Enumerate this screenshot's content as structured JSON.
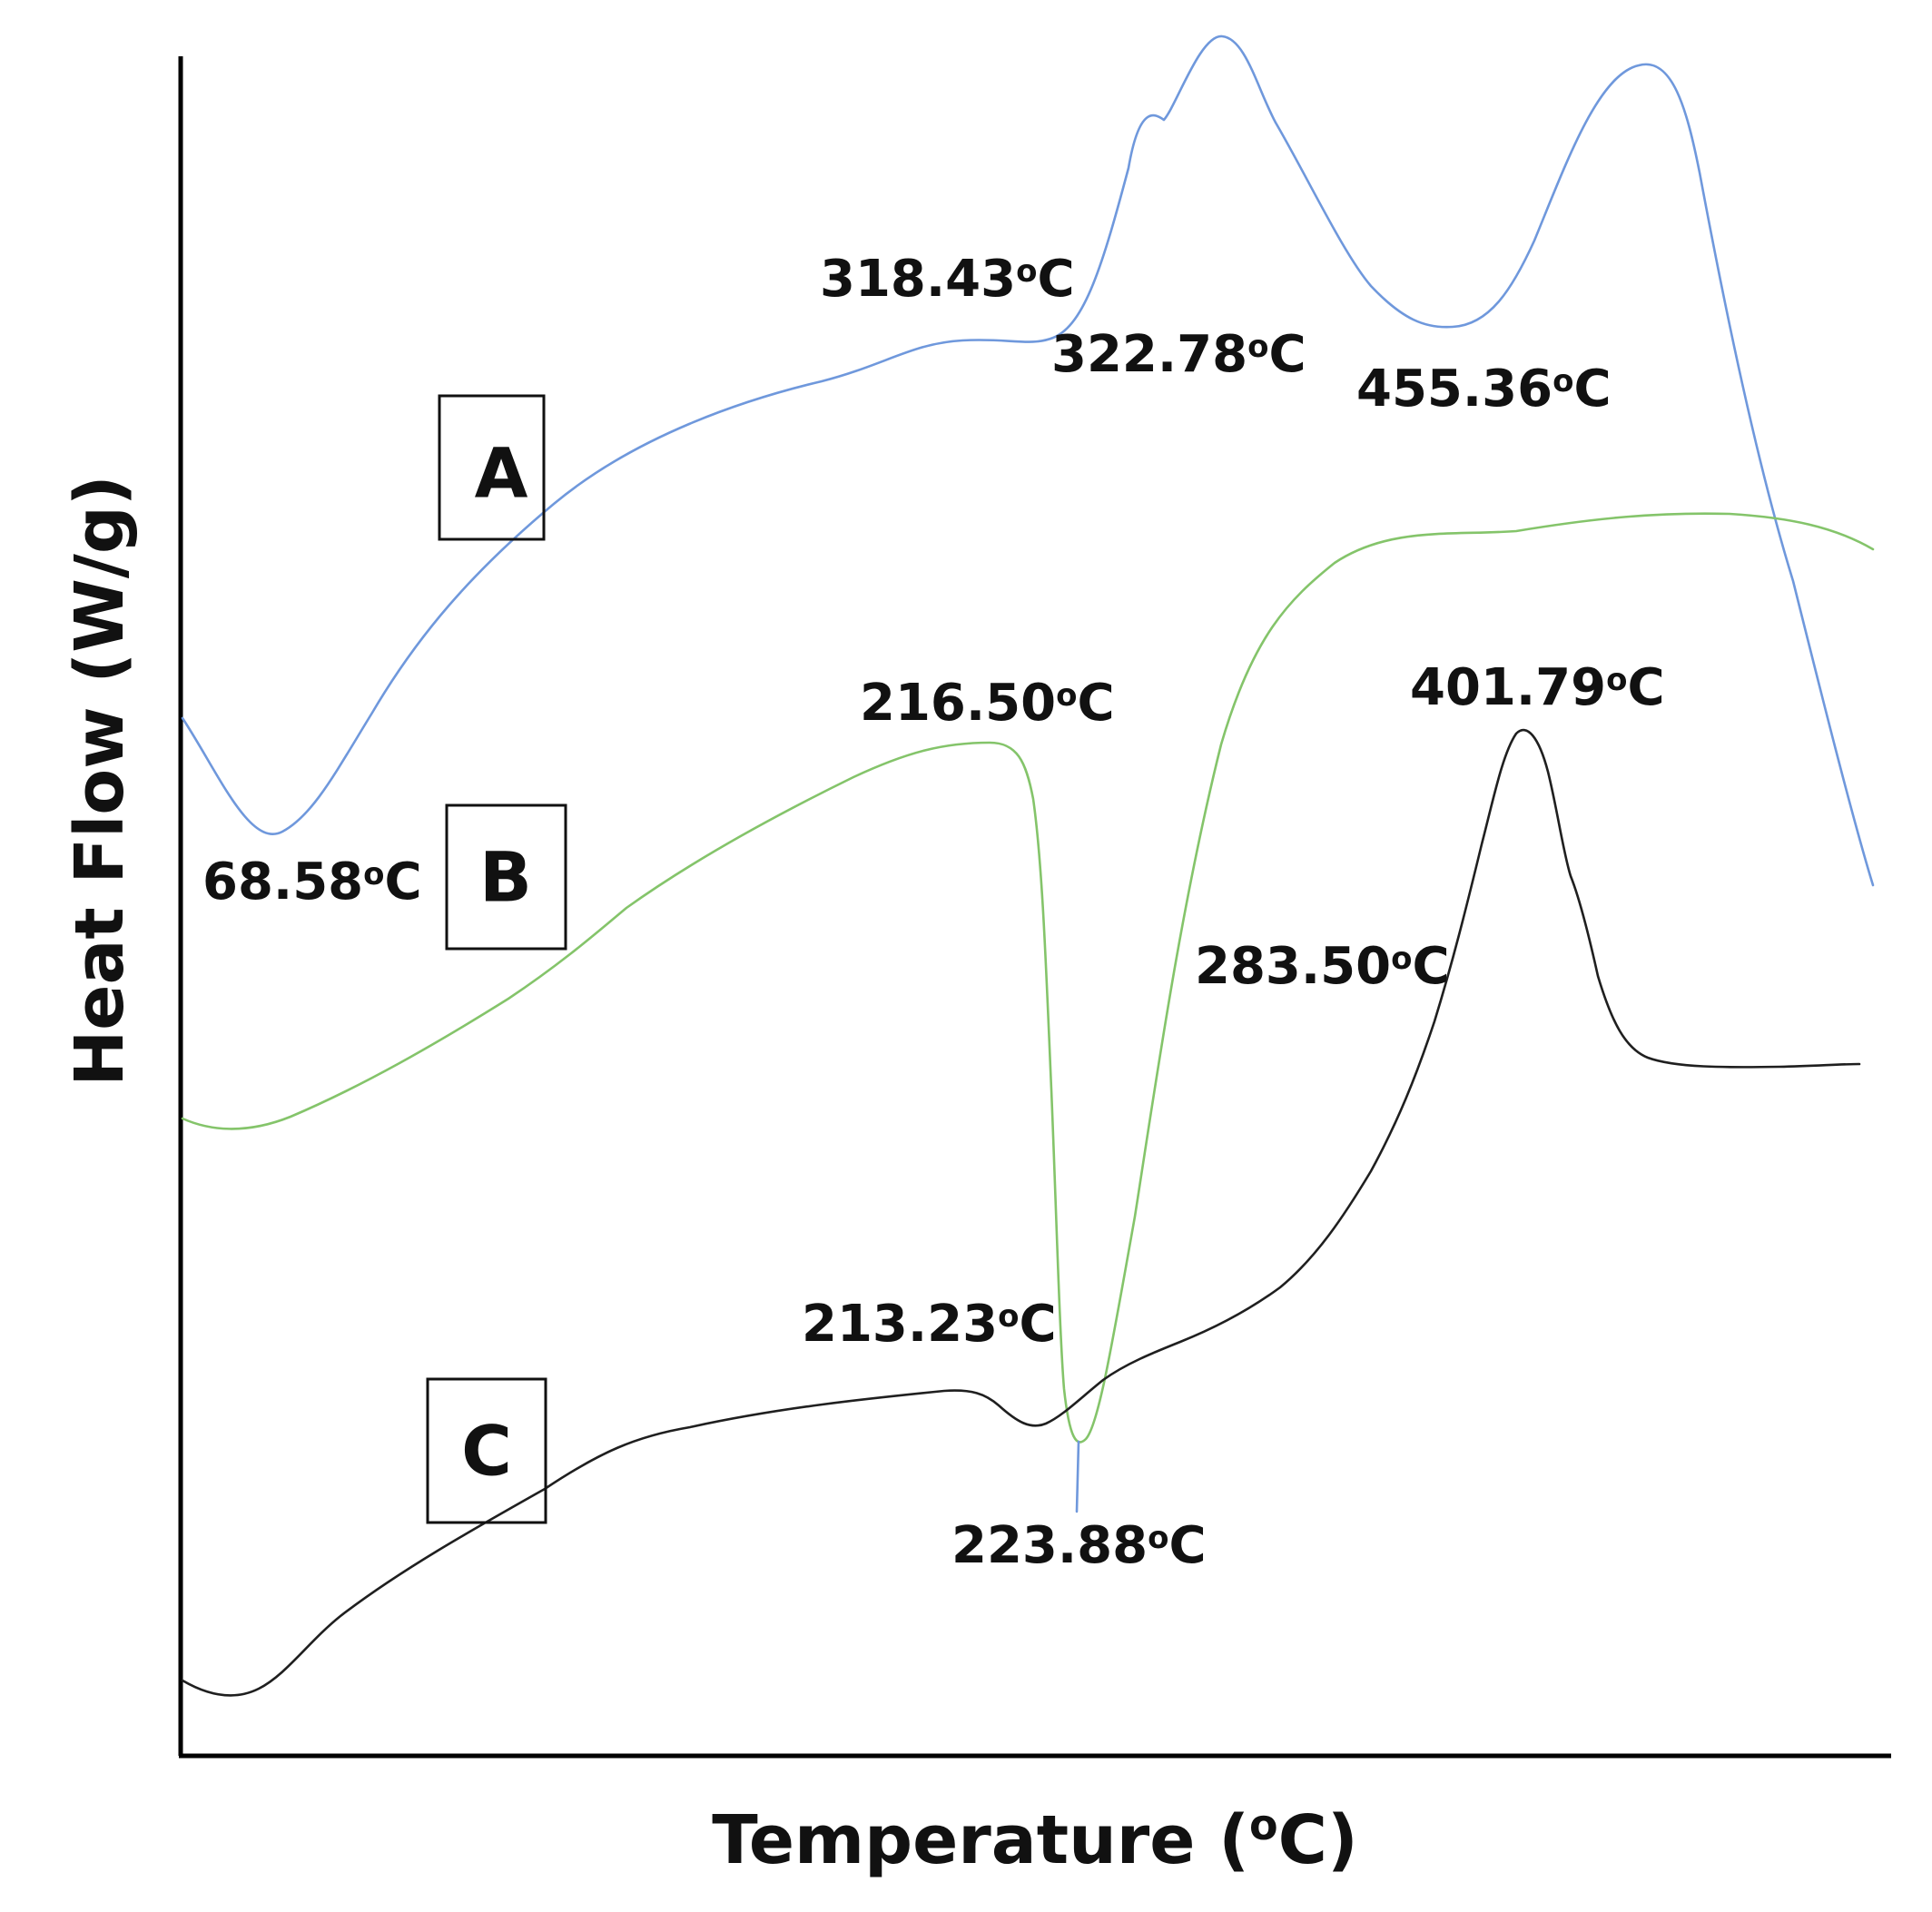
{
  "chart_data": {
    "type": "line",
    "title": "",
    "xlabel": "Temperature (",
    "xlabel_sup": "o",
    "xlabel_end": "C)",
    "ylabel": "Heat Flow (W/g)",
    "grid": false,
    "ticks": false,
    "colors": {
      "A": "#6f98dc",
      "B": "#84c46a",
      "C": "#1f1f1f",
      "axis": "#000000"
    },
    "series": [
      {
        "id": "A",
        "name": "A"
      },
      {
        "id": "B",
        "name": "B"
      },
      {
        "id": "C",
        "name": "C"
      }
    ],
    "annotations": {
      "a1": "68.58",
      "a2": "318.43",
      "a3": "322.78",
      "a4": "455.36",
      "b1": "216.50",
      "b2": "223.88",
      "b3": "283.50",
      "c1": "213.23",
      "c2": "401.79"
    },
    "unit_sup": "o",
    "unit": "C"
  }
}
